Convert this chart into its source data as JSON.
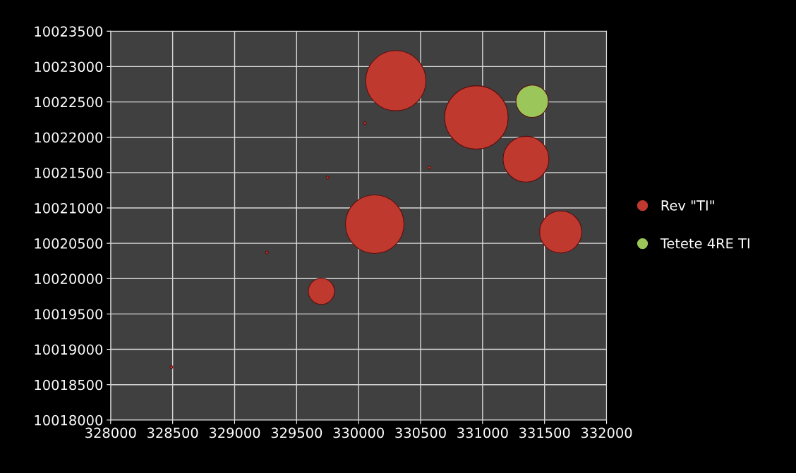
{
  "chart_data": {
    "type": "bubble",
    "xlim": [
      328000,
      332000
    ],
    "xticks": [
      328000,
      328500,
      329000,
      329500,
      330000,
      330500,
      331000,
      331500,
      332000
    ],
    "ylim": [
      10018000,
      10023500
    ],
    "yticks": [
      10018000,
      10018500,
      10019000,
      10019500,
      10020000,
      10020500,
      10021000,
      10021500,
      10022000,
      10022500,
      10023000,
      10023500
    ],
    "grid": true,
    "legend": "right",
    "marker": "circle",
    "series": [
      {
        "name": "Rev \"TI\"",
        "color": "#c0392f",
        "x": [
          328490,
          329260,
          329700,
          329750,
          330050,
          330130,
          330300,
          330570,
          330950,
          331350,
          331630
        ],
        "values": [
          10018750,
          10020370,
          10019820,
          10021430,
          10022200,
          10020770,
          10022800,
          10021570,
          10022280,
          10021690,
          10020660
        ],
        "sizes": [
          0.002,
          0.002,
          0.17,
          0.002,
          0.002,
          0.85,
          0.9,
          0.002,
          1,
          0.52,
          0.44
        ]
      },
      {
        "name": "Tetete 4RE TI",
        "color": "#9bc65a",
        "x": [
          331400
        ],
        "values": [
          10022510
        ],
        "sizes": [
          0.26
        ]
      }
    ]
  }
}
